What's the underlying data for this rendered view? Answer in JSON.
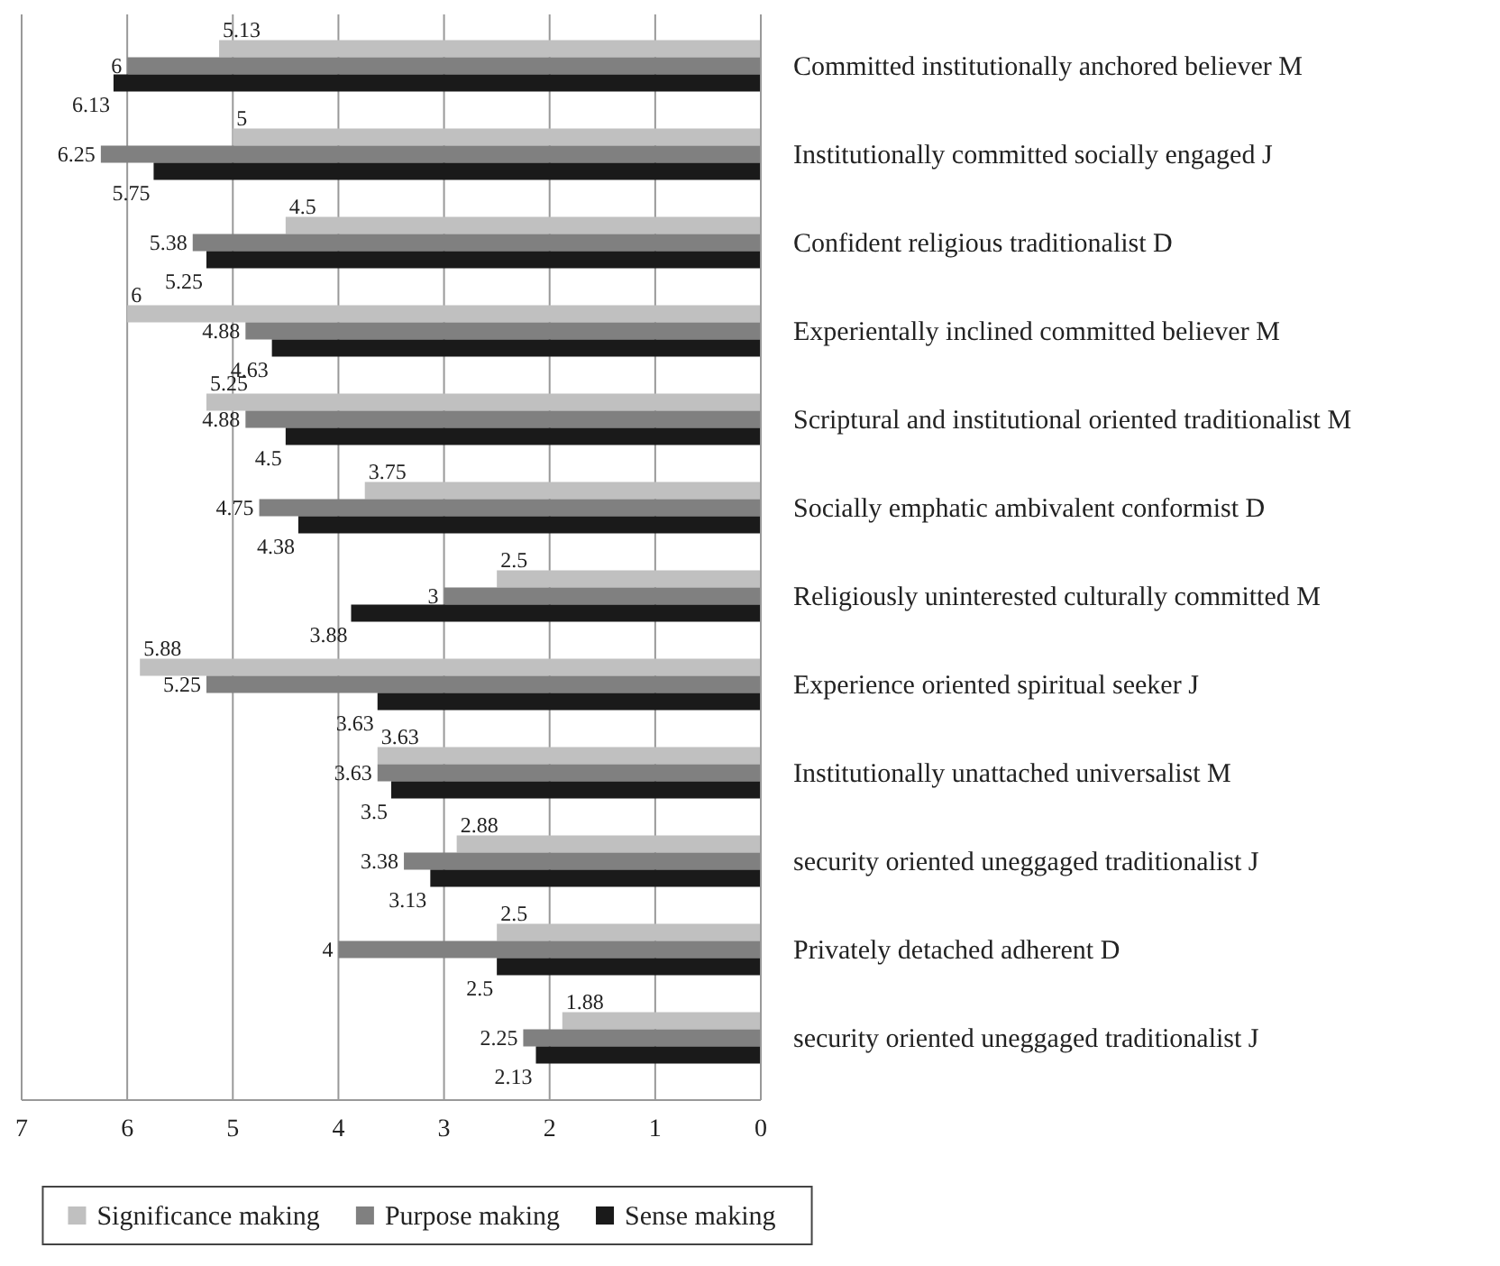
{
  "chart_data": {
    "type": "bar",
    "orientation": "horizontal",
    "categories": [
      "Committed institutionally anchored believer M",
      "Institutionally committed socially engaged J",
      "Confident religious traditionalist D",
      "Experientally inclined committed believer M",
      "Scriptural and institutional oriented traditionalist M",
      "Socially emphatic ambivalent conformist D",
      "Religiously uninterested culturally committed M",
      "Experience oriented spiritual seeker J",
      "Institutionally unattached universalist M",
      "security oriented uneggaged traditionalist J",
      "Privately detached adherent D",
      "security oriented uneggaged traditionalist J"
    ],
    "series": [
      {
        "name": "Significance making",
        "color": "#c0c0c0",
        "values": [
          5.13,
          5,
          4.5,
          6,
          5.25,
          3.75,
          2.5,
          5.88,
          3.63,
          2.88,
          2.5,
          1.88
        ]
      },
      {
        "name": "Purpose making",
        "color": "#808080",
        "values": [
          6,
          6.25,
          5.38,
          4.88,
          4.88,
          4.75,
          3,
          5.25,
          3.63,
          3.38,
          4,
          2.25
        ]
      },
      {
        "name": "Sense making",
        "color": "#1a1a1a",
        "values": [
          6.13,
          5.75,
          5.25,
          4.63,
          4.5,
          4.38,
          3.88,
          3.63,
          3.5,
          3.13,
          2.5,
          2.13
        ]
      }
    ],
    "xlim": [
      7,
      0
    ],
    "xticks": [
      7,
      6,
      5,
      4,
      3,
      2,
      1,
      0
    ],
    "grid": "x",
    "data_labels": true,
    "legend": "bottom"
  }
}
